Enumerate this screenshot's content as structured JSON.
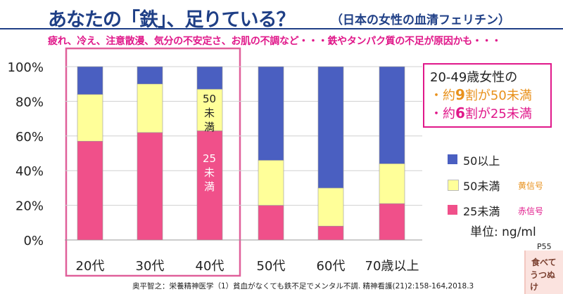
{
  "header": {
    "title": "あなたの「鉄」、足りている？",
    "subtitle": "（日本の女性の血清フェリチン）",
    "tagline": "疲れ、冷え、注意散漫、気分の不安定さ、お肌の不調など・・・鉄やタンパク質の不足が原因かも・・・"
  },
  "callout": {
    "line1": "20-49歳女性の",
    "line2_prefix": "・約",
    "line2_num": "9",
    "line2_suffix": "割が50未満",
    "line3_prefix": "・約",
    "line3_num": "6",
    "line3_suffix": "割が25未満"
  },
  "legend": {
    "items": [
      {
        "label": "50以上",
        "tag": ""
      },
      {
        "label": "50未満",
        "tag": "黄信号"
      },
      {
        "label": "25未満",
        "tag": "赤信号"
      }
    ]
  },
  "unit_label": "単位: ng/ml",
  "page_number": "P55",
  "book_cover_text": [
    "食べて",
    "うつぬけ"
  ],
  "citation": "奥平智之：栄養精神医学（1）貧血がなくても鉄不足でメンタル不調. 精神看護(21)2:158-164,2018.3",
  "annotations": {
    "yellow_label": "50\n未\n満",
    "pink_label": "25\n未\n満"
  },
  "colors": {
    "blue": "#4a5fc1",
    "yellow": "#ffff99",
    "pink": "#f0508a",
    "highlight_border": "#e0609a",
    "title": "#1f3f86",
    "magenta": "#e0188a",
    "yellow_tag": "#e8911c"
  },
  "chart_data": {
    "type": "bar",
    "stacked": true,
    "categories": [
      "20代",
      "30代",
      "40代",
      "50代",
      "60代",
      "70歳以上"
    ],
    "series": [
      {
        "name": "25未満",
        "values": [
          57,
          62,
          63,
          20,
          8,
          21
        ]
      },
      {
        "name": "50未満",
        "values": [
          27,
          28,
          24,
          26,
          22,
          23
        ]
      },
      {
        "name": "50以上",
        "values": [
          16,
          10,
          13,
          54,
          70,
          56
        ]
      }
    ],
    "ylim": [
      0,
      100
    ],
    "yticks": [
      "0%",
      "20%",
      "40%",
      "60%",
      "80%",
      "100%"
    ],
    "highlight_categories": [
      "20代",
      "30代",
      "40代"
    ],
    "legend_position": "right"
  }
}
